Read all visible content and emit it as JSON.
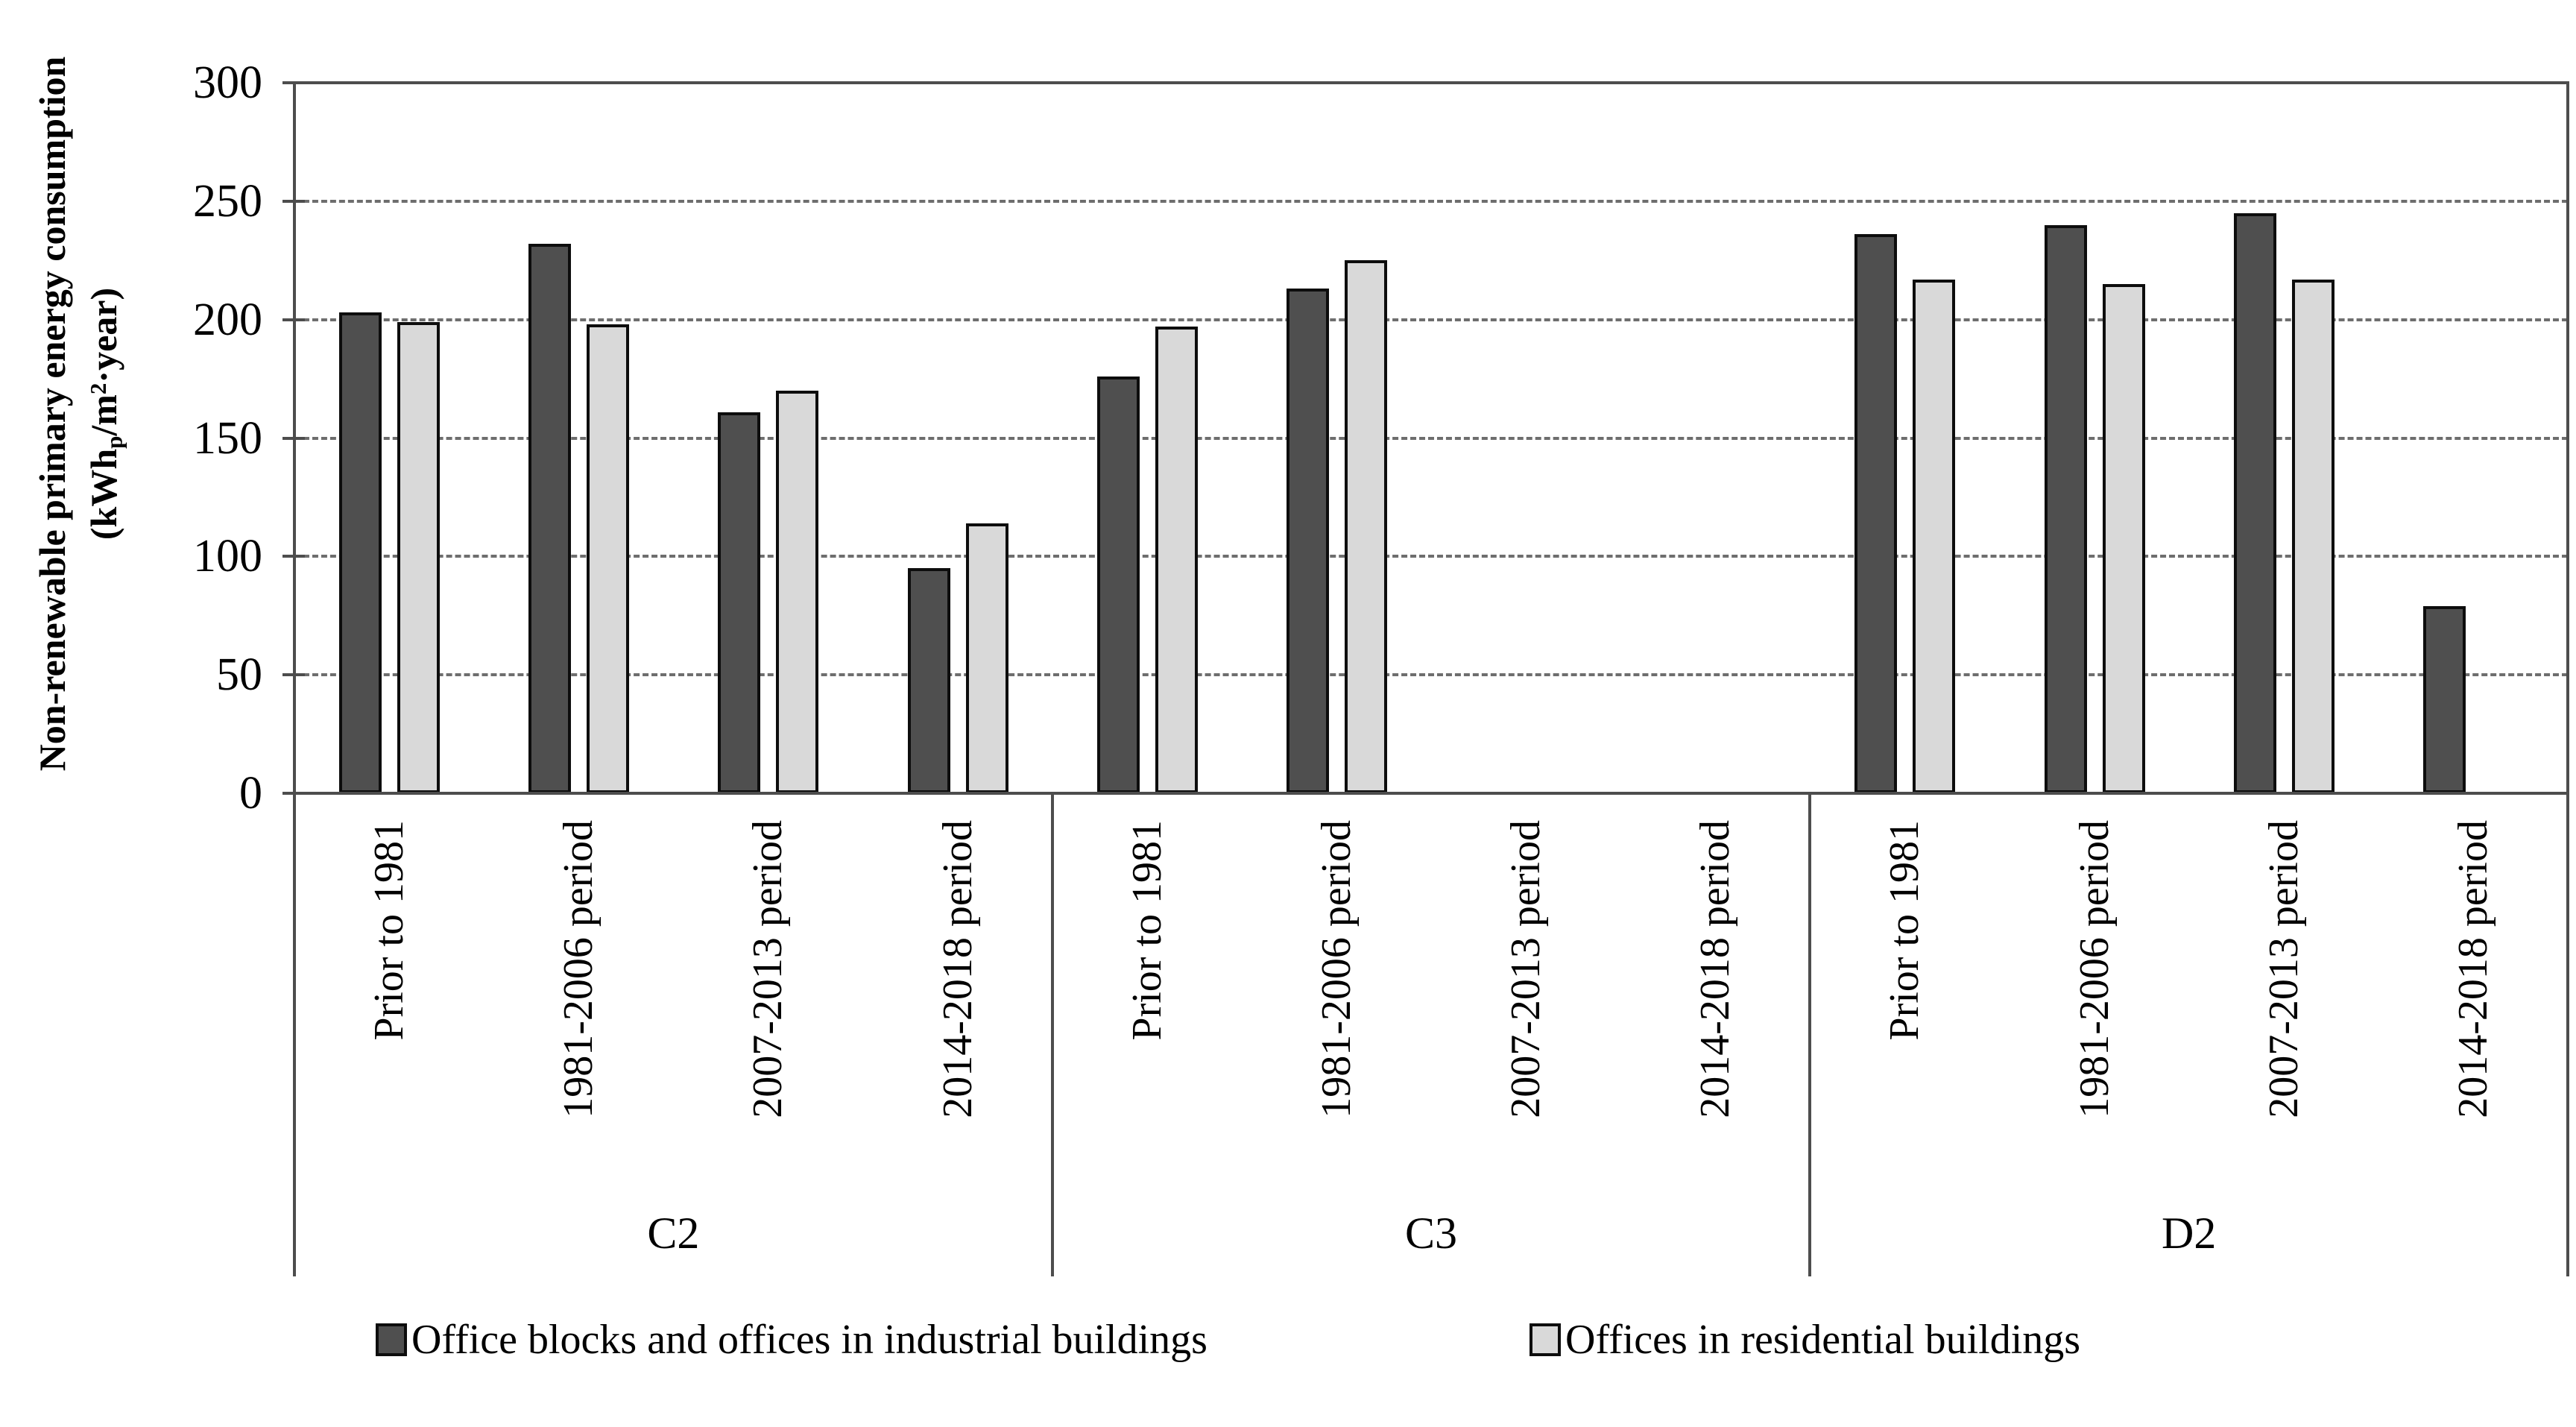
{
  "chart_data": {
    "type": "bar",
    "y_axis_title": "Non-renewable primary energy consumption",
    "y_axis_unit": {
      "pre": "(kWh",
      "sub": "p",
      "mid": "/m",
      "sup": "2",
      "post": "·year)"
    },
    "ylabel_full": "Non-renewable primary energy consumption (kWh_p/m2·year)",
    "y_ticks": [
      0,
      50,
      100,
      150,
      200,
      250,
      300
    ],
    "ylim": [
      0,
      300
    ],
    "grid": "horizontal dashed",
    "legend_position": "bottom",
    "groups": [
      "C2",
      "C3",
      "D2"
    ],
    "categories": [
      "Prior to 1981",
      "1981-2006 period",
      "2007-2013 period",
      "2014-2018 period"
    ],
    "series": [
      {
        "name": "Office blocks and offices in industrial buildings",
        "color": "#4f4f4f",
        "values": [
          [
            203,
            232,
            161,
            95
          ],
          [
            176,
            213,
            null,
            null
          ],
          [
            236,
            240,
            245,
            79
          ]
        ]
      },
      {
        "name": "Offices in residential buildings",
        "color": "#d9d9d9",
        "values": [
          [
            199,
            198,
            170,
            114
          ],
          [
            197,
            225,
            null,
            null
          ],
          [
            217,
            215,
            217,
            null
          ]
        ]
      }
    ]
  }
}
